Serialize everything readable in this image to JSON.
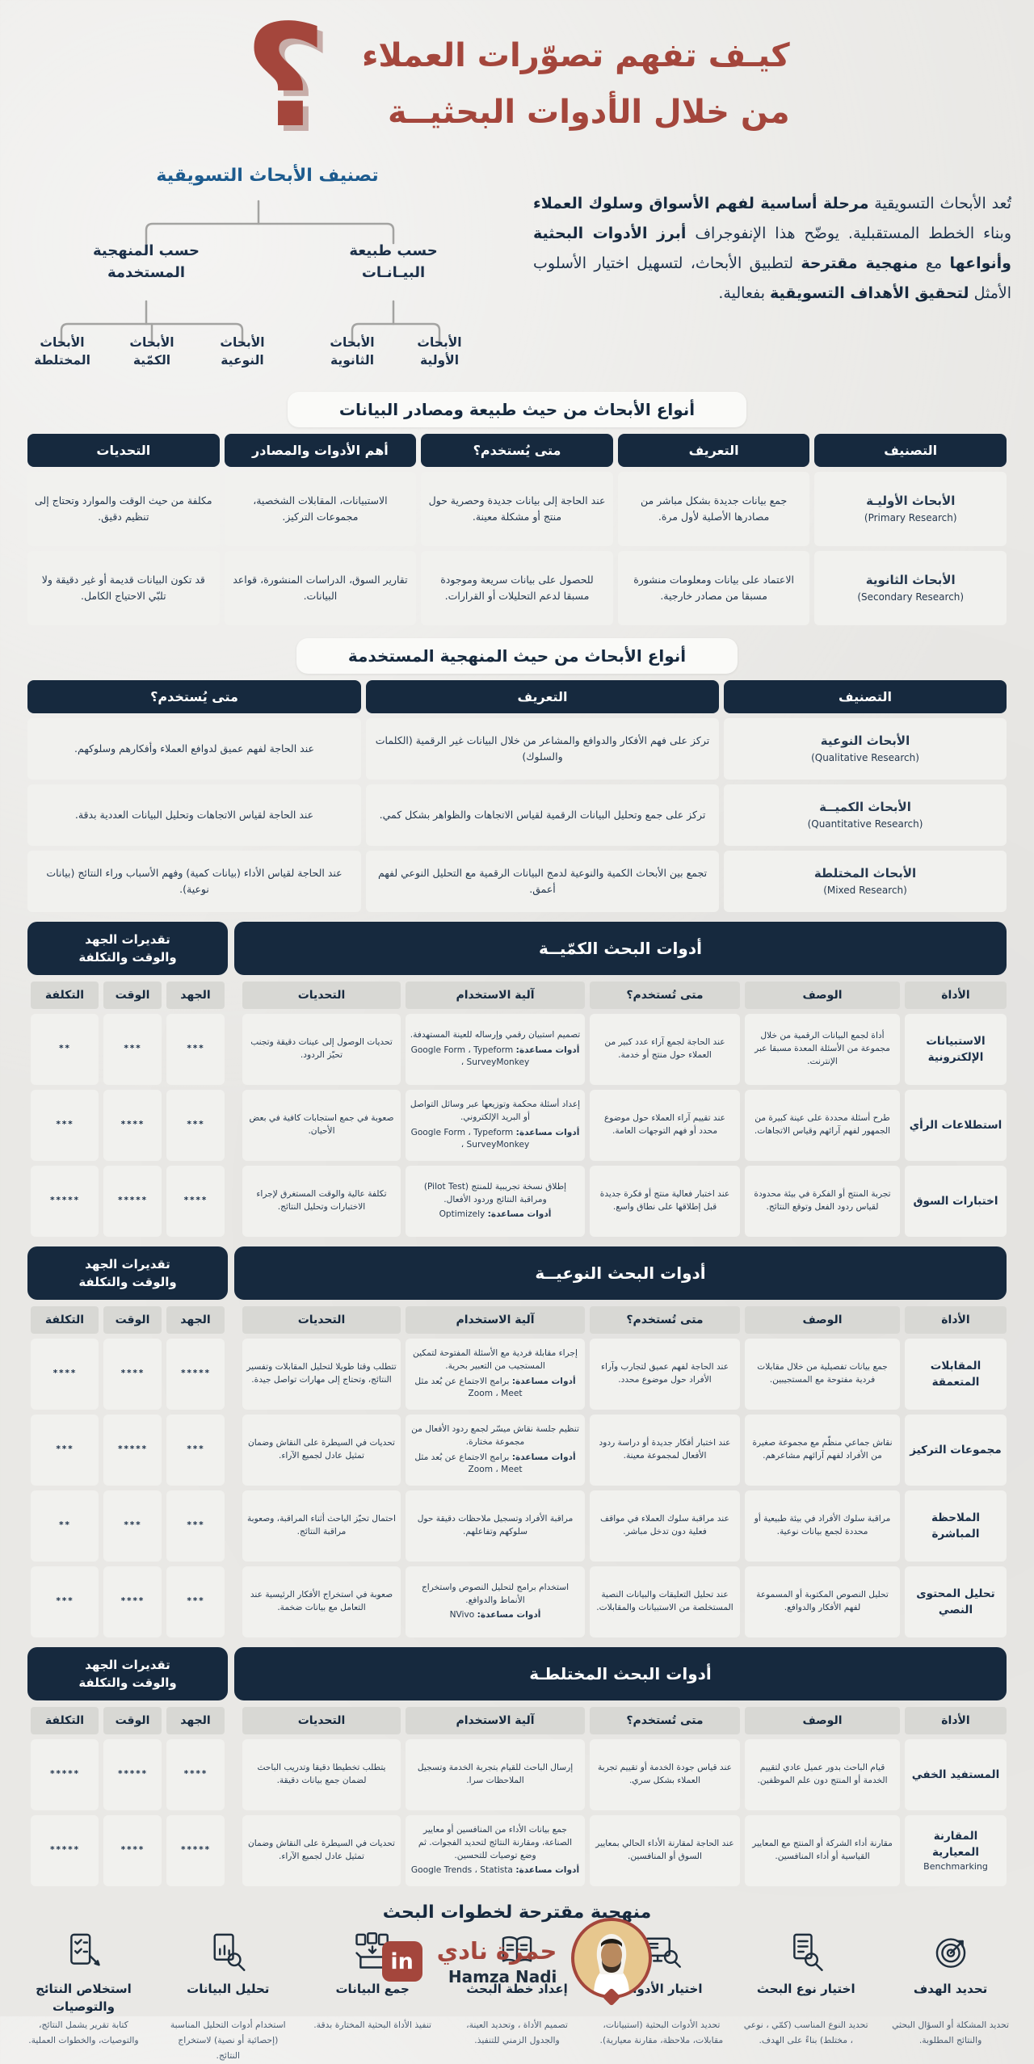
{
  "colors": {
    "accent_red": "#A4463C",
    "navy": "#16293E",
    "tree_blue": "#1D5B8E",
    "cell_bg": "#F1F1EE"
  },
  "page": {
    "title_line1": "كيـف تفهم تصوّرات العملاء",
    "title_line2": "من خلال الأدوات البحثيــة",
    "question_mark": "؟"
  },
  "intro": {
    "segments": [
      {
        "t": "تُعد الأبحاث التسويقية ",
        "b": false
      },
      {
        "t": "مرحلة أساسية لفهم الأسواق وسلوك العملاء",
        "b": true
      },
      {
        "t": " وبناء الخطط المستقبلية. يوضّح هذا الإنفوجراف ",
        "b": false
      },
      {
        "t": "أبرز الأدوات البحثية وأنواعها",
        "b": true
      },
      {
        "t": " مع ",
        "b": false
      },
      {
        "t": "منهجية مقترحة",
        "b": true
      },
      {
        "t": " لتطبيق الأبحاث، لتسهيل اختيار الأسلوب الأمثل ",
        "b": false
      },
      {
        "t": "لتحقيق الأهداف التسويقية",
        "b": true
      },
      {
        "t": " بفعالية.",
        "b": false
      }
    ]
  },
  "tree": {
    "title": "تصنيف الأبحاث التسويقية",
    "branch_nature": {
      "label": "حسب طبيعة\nالبيـانـات",
      "children": [
        "الأبحاث\nالأولية",
        "الأبحاث\nالثانوية"
      ]
    },
    "branch_method": {
      "label": "حسب المنهجية\nالمستخدمة",
      "children": [
        "الأبحاث\nالنوعية",
        "الأبحاث\nالكمّية",
        "الأبحاث\nالمختلطة"
      ]
    }
  },
  "table1": {
    "title": "أنواع الأبحاث من حيث طبيعة ومصادر البيانات",
    "headers": [
      "التصنيف",
      "التعريف",
      "متى يُستخدم؟",
      "أهم الأدوات والمصادر",
      "التحديات"
    ],
    "rows": [
      {
        "name": "الأبحاث الأوليـة",
        "name_en": "(Primary Research)",
        "definition": "جمع بيانات جديدة بشكل مباشر من مصادرها الأصلية لأول مرة.",
        "when": "عند الحاجة إلى بيانات جديدة وحصرية حول منتج أو مشكلة معينة.",
        "tools": "الاستبيانات، المقابلات الشخصية، مجموعات التركيز.",
        "challenges": "مكلفة من حيث الوقت والموارد وتحتاج إلى تنظيم دقيق."
      },
      {
        "name": "الأبحاث الثانوية",
        "name_en": "(Secondary Research)",
        "definition": "الاعتماد على بيانات ومعلومات منشورة مسبقا من مصادر خارجية.",
        "when": "للحصول على بيانات سريعة وموجودة مسبقا لدعم التحليلات أو القرارات.",
        "tools": "تقارير السوق، الدراسات المنشورة، قواعد البيانات.",
        "challenges": "قد تكون البيانات قديمة أو غير دقيقة ولا تلبّي الاحتياج الكامل."
      }
    ]
  },
  "table2": {
    "title": "أنواع الأبحاث من حيث المنهجية المستخدمة",
    "headers": [
      "التصنيف",
      "التعريف",
      "متى يُستخدم؟"
    ],
    "rows": [
      {
        "name": "الأبحاث النوعية",
        "name_en": "(Qualitative Research)",
        "definition": "تركز على فهم الأفكار والدوافع والمشاعر من خلال البيانات غير الرقمية (الكلمات والسلوك)",
        "when": "عند الحاجة لفهم عميق لدوافع العملاء وأفكارهم وسلوكهم."
      },
      {
        "name": "الأبحاث الكميــة",
        "name_en": "(Quantitative Research)",
        "definition": "تركز على جمع وتحليل البيانات الرقمية لقياس الاتجاهات والظواهر بشكل كمي.",
        "when": "عند الحاجة لقياس الاتجاهات وتحليل البيانات العددية بدقة."
      },
      {
        "name": "الأبحاث المختلطة",
        "name_en": "(Mixed Research)",
        "definition": "تجمع بين الأبحاث الكمية والنوعية لدمج البيانات الرقمية مع التحليل النوعي لفهم أعمق.",
        "when": "عند الحاجة لقياس الأداء (بيانات كمية) وفهم الأسباب وراء النتائج (بيانات نوعية)."
      }
    ]
  },
  "estimates_label": "تقديرات الجهد\nوالوقت والتكلفة",
  "tool_headers": [
    "الأداة",
    "الوصف",
    "متى تُستخدم؟",
    "آلية الاستخدام",
    "التحديات",
    "الجهد",
    "الوقت",
    "التكلفة"
  ],
  "quant": {
    "title": "أدوات البحث الكمّيــة",
    "rows": [
      {
        "tool": "الاستبيانات الإلكترونية",
        "tool_en": "",
        "desc": "أداة لجمع البيانات الرقمية من خلال مجموعة من الأسئلة المعدة مسبقا عبر الإنترنت.",
        "when": "عند الحاجة لجمع آراء عدد كبير من العملاء حول منتج أو خدمة.",
        "how": "تصميم استبيان رقمي وإرساله للعينة المستهدفة.",
        "helpers_label": "أدوات مساعدة:",
        "helpers": "Google Form ، Typeform ، SurveyMonkey",
        "challenges": "تحديات الوصول إلى عينات دقيقة وتجنب تحيّز الردود.",
        "effort": "***",
        "time": "***",
        "cost": "**"
      },
      {
        "tool": "استطلاعات الرأي",
        "tool_en": "",
        "desc": "طرح أسئلة محددة على عينة كبيرة من الجمهور لفهم آرائهم وقياس الاتجاهات.",
        "when": "عند تقييم آراء العملاء حول موضوع محدد أو فهم التوجهات العامة.",
        "how": "إعداد أسئلة محكمة وتوزيعها عبر وسائل التواصل أو البريد الإلكتروني.",
        "helpers_label": "أدوات مساعدة:",
        "helpers": "Google Form ، Typeform ، SurveyMonkey",
        "challenges": "صعوبة في جمع استجابات كافية في بعض الأحيان.",
        "effort": "***",
        "time": "****",
        "cost": "***"
      },
      {
        "tool": "اختبارات السوق",
        "tool_en": "",
        "desc": "تجربة المنتج أو الفكرة في بيئة محدودة لقياس ردود الفعل وتوقع النتائج.",
        "when": "عند اختبار فعالية منتج أو فكرة جديدة قبل إطلاقها على نطاق واسع.",
        "how": "إطلاق نسخة تجريبية للمنتج (Pilot Test) ومراقبة النتائج وردود الأفعال.",
        "helpers_label": "أدوات مساعدة:",
        "helpers": "Optimizely",
        "challenges": "تكلفة عالية والوقت المستغرق لإجراء الاختبارات وتحليل النتائج.",
        "effort": "****",
        "time": "*****",
        "cost": "*****"
      }
    ]
  },
  "qual": {
    "title": "أدوات البحث النوعيــة",
    "rows": [
      {
        "tool": "المقابلات المتعمقة",
        "tool_en": "",
        "desc": "جمع بيانات تفصيلية من خلال مقابلات فردية مفتوحة مع المستجيبين.",
        "when": "عند الحاجة لفهم عميق لتجارب وآراء الأفراد حول موضوع محدد.",
        "how": "إجراء مقابلة فردية مع الأسئلة المفتوحة لتمكين المستجيب من التعبير بحرية.",
        "helpers_label": "أدوات مساعدة:",
        "helpers": "برامج الاجتماع عن بُعد مثل Zoom ، Meet",
        "challenges": "تتطلب وقتا طويلا لتحليل المقابلات وتفسير النتائج، وتحتاج إلى مهارات تواصل جيدة.",
        "effort": "*****",
        "time": "****",
        "cost": "****"
      },
      {
        "tool": "مجموعات التركيز",
        "tool_en": "",
        "desc": "نقاش جماعي منظّم مع مجموعة صغيرة من الأفراد لفهم آرائهم مشاعرهم.",
        "when": "عند اختبار أفكار جديدة أو دراسة ردود الأفعال لمجموعة معينة.",
        "how": "تنظيم جلسة نقاش ميسّر لجمع ردود الأفعال من مجموعة مختارة.",
        "helpers_label": "أدوات مساعدة:",
        "helpers": "برامج الاجتماع عن بُعد مثل Zoom ، Meet",
        "challenges": "تحديات في السيطرة على النقاش وضمان تمثيل عادل لجميع الآراء.",
        "effort": "***",
        "time": "*****",
        "cost": "***"
      },
      {
        "tool": "الملاحظة المباشرة",
        "tool_en": "",
        "desc": "مراقبة سلوك الأفراد في بيئة طبيعية أو محددة لجمع بيانات نوعية.",
        "when": "عند مراقبة سلوك العملاء في مواقف فعلية دون تدخل مباشر.",
        "how": "مراقبة الأفراد وتسجيل ملاحظات دقيقة حول سلوكهم وتفاعلهم.",
        "challenges": "احتمال تحيّز الباحث أثناء المراقبة، وصعوبة مراقبة النتائج.",
        "effort": "***",
        "time": "***",
        "cost": "**"
      },
      {
        "tool": "تحليل المحتوى النصي",
        "tool_en": "",
        "desc": "تحليل النصوص المكتوبة أو المسموعة لفهم الأفكار والدوافع.",
        "when": "عند تحليل التعليقات والبيانات النصية المستخلصة من الاستبيانات والمقابلات.",
        "how": "استخدام برامج لتحليل النصوص واستخراج الأنماط والدوافع.",
        "helpers_label": "أدوات مساعدة:",
        "helpers": "NVivo",
        "challenges": "صعوبة في استخراج الأفكار الرئيسية عند التعامل مع بيانات ضخمة.",
        "effort": "***",
        "time": "****",
        "cost": "***"
      }
    ]
  },
  "mixed": {
    "title": "أدوات البحث المختلطـة",
    "rows": [
      {
        "tool": "المستفيد الخفي",
        "tool_en": "",
        "desc": "قيام الباحث بدور عميل عادي لتقييم الخدمة أو المنتج دون علم الموظفين.",
        "when": "عند قياس جودة الخدمة أو تقييم تجربة العملاء بشكل سري.",
        "how": "إرسال الباحث للقيام بتجربة الخدمة وتسجيل الملاحظات سرا.",
        "challenges": "يتطلب تخطيطا دقيقا وتدريب الباحث لضمان جمع بيانات دقيقة.",
        "effort": "****",
        "time": "*****",
        "cost": "*****"
      },
      {
        "tool": "المقارنة المعيارية",
        "tool_en": "Benchmarking",
        "desc": "مقارنة أداء الشركة أو المنتج مع المعايير القياسية أو أداء المنافسين.",
        "when": "عند الحاجة لمقارنة الأداء الحالي بمعايير السوق أو المنافسين.",
        "how": "جمع بيانات الأداء من المنافسين أو معايير الصناعة، ومقارنة النتائج لتحديد الفجوات. ثم وضع توصيات للتحسين.",
        "helpers_label": "أدوات مساعدة:",
        "helpers": "Google Trends ، Statista",
        "challenges": "تحديات في السيطرة على النقاش وضمان تمثيل عادل لجميع الآراء.",
        "effort": "*****",
        "time": "****",
        "cost": "*****"
      }
    ]
  },
  "steps": {
    "title": "منهجية مقترحة لخطوات البحث",
    "items": [
      {
        "label": "تحديد الهدف",
        "icon": "target-icon",
        "desc": "تحديد المشكلة أو السؤال البحثي والنتائج المطلوبة."
      },
      {
        "label": "اختيار نوع البحث",
        "icon": "document-search-icon",
        "desc": "تحديد النوع المناسب (كمّي ، نوعي ، مختلط) بناءً على الهدف."
      },
      {
        "label": "اختيار الأدوات",
        "icon": "screen-search-icon",
        "desc": "تحديد الأدوات البحثية (استبيانات، مقابلات، ملاحظة، مقارنة معيارية)."
      },
      {
        "label": "إعداد خطة البحث",
        "icon": "plan-book-icon",
        "desc": "تصميم الأداة ، وتحديد العينة، والجدول الزمني للتنفيذ."
      },
      {
        "label": "جمع البيانات",
        "icon": "collect-data-icon",
        "desc": "تنفيذ الأداة البحثية المختارة بدقة."
      },
      {
        "label": "تحليل البيانات",
        "icon": "analyze-icon",
        "desc": "استخدام أدوات التحليل المناسبة (إحصائية أو نصية) لاستخراج النتائج."
      },
      {
        "label": "استخلاص النتائج\nوالتوصيات",
        "icon": "report-icon",
        "desc": "كتابة تقرير يشمل النتائج، والتوصيات، والخطوات العملية."
      }
    ]
  },
  "footer": {
    "name_ar": "حمزة نادي",
    "name_en": "Hamza Nadi",
    "linkedin_label": "in"
  }
}
